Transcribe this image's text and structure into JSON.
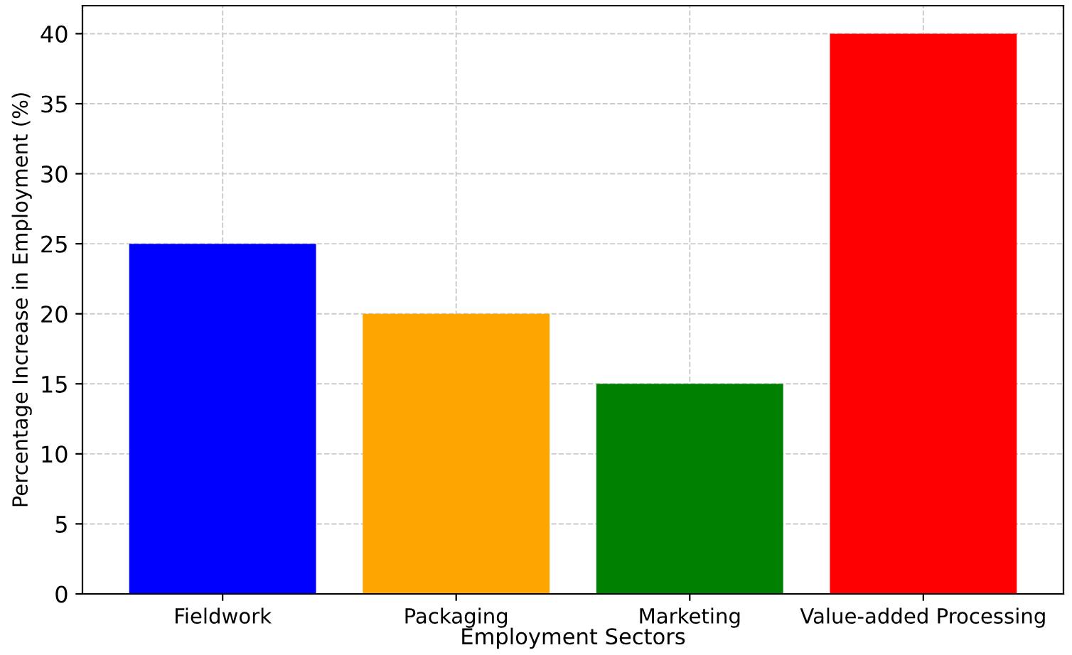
{
  "chart_data": {
    "type": "bar",
    "xlabel": "Employment Sectors",
    "ylabel": "Percentage Increase in Employment (%)",
    "categories": [
      "Fieldwork",
      "Packaging",
      "Marketing",
      "Value-added Processing"
    ],
    "values": [
      25,
      20,
      15,
      40
    ],
    "colors": [
      "#0000ff",
      "#ffa500",
      "#008000",
      "#ff0000"
    ],
    "ylim": [
      0,
      42
    ],
    "yticks": [
      0,
      5,
      10,
      15,
      20,
      25,
      30,
      35,
      40
    ],
    "grid": true
  }
}
